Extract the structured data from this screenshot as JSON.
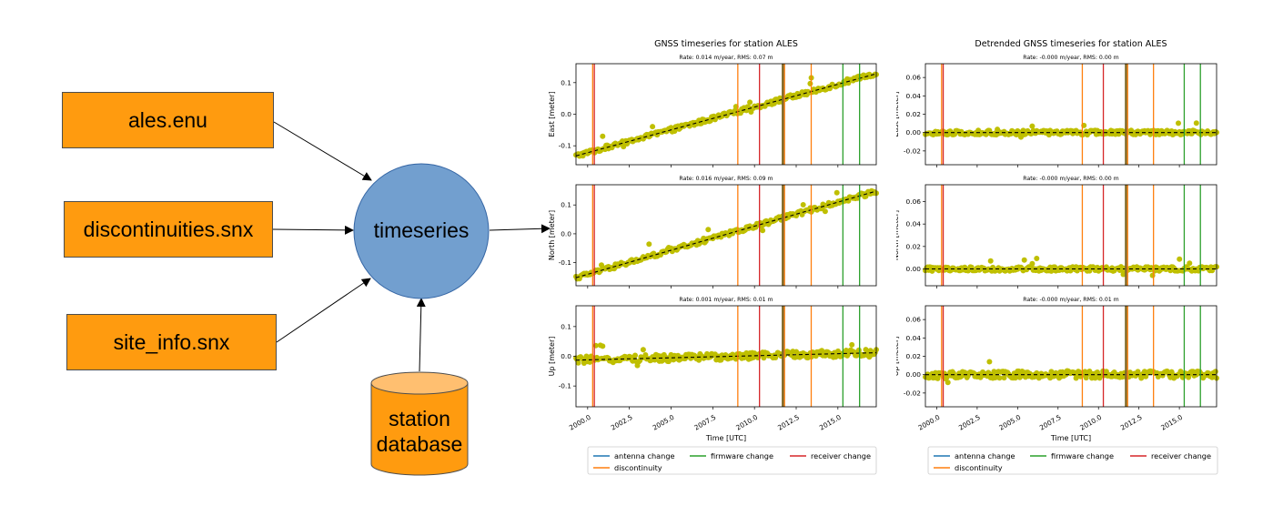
{
  "diagram": {
    "inputs": [
      {
        "label": "ales.enu"
      },
      {
        "label": "discontinuities.snx"
      },
      {
        "label": "site_info.snx"
      }
    ],
    "process": {
      "label": "timeseries"
    },
    "database": {
      "label_line1": "station",
      "label_line2": "database"
    },
    "colors": {
      "box_fill": "#ff9b0f",
      "circle_fill": "#729fcf",
      "db_fill": "#ff9b0f",
      "db_top": "#ffbf70"
    }
  },
  "chart_data": [
    {
      "type": "scatter",
      "title": "GNSS timeseries for station ALES",
      "xlabel": "Time [UTC]",
      "xticks": [
        "2000.0",
        "2002.5",
        "2005.0",
        "2007.5",
        "2010.0",
        "2012.5",
        "2015.0"
      ],
      "xlim": [
        1999.3,
        2017.3
      ],
      "marker_color": "#bfbf00",
      "panels": [
        {
          "ylabel": "East [meter]",
          "subtitle": "Rate: 0.014 m/year, RMS: 0.07 m",
          "ylim": [
            -0.16,
            0.16
          ],
          "yticks": [
            "0.1",
            "0.0",
            "-0.1"
          ],
          "trend_start": -0.132,
          "trend_end": 0.128
        },
        {
          "ylabel": "North [meter]",
          "subtitle": "Rate: 0.016 m/year, RMS: 0.09 m",
          "ylim": [
            -0.18,
            0.17
          ],
          "yticks": [
            "0.1",
            "0.0",
            "-0.1"
          ],
          "trend_start": -0.152,
          "trend_end": 0.148
        },
        {
          "ylabel": "Up [meter]",
          "subtitle": "Rate: 0.001 m/year, RMS: 0.01 m",
          "ylim": [
            -0.17,
            0.17
          ],
          "yticks": [
            "0.1",
            "0.0",
            "-0.1"
          ],
          "trend_start": -0.013,
          "trend_end": 0.012
        }
      ],
      "events": [
        {
          "x": 2000.3,
          "kind": "discontinuity"
        },
        {
          "x": 2000.4,
          "kind": "receiver change"
        },
        {
          "x": 2009.0,
          "kind": "discontinuity"
        },
        {
          "x": 2010.3,
          "kind": "receiver change"
        },
        {
          "x": 2011.7,
          "kind": "antenna change"
        },
        {
          "x": 2011.8,
          "kind": "discontinuity"
        },
        {
          "x": 2013.4,
          "kind": "discontinuity"
        },
        {
          "x": 2015.3,
          "kind": "firmware change"
        },
        {
          "x": 2016.3,
          "kind": "firmware change"
        }
      ],
      "legend": [
        {
          "label": "antenna change",
          "color": "#1f77b4"
        },
        {
          "label": "firmware change",
          "color": "#2ca02c"
        },
        {
          "label": "receiver change",
          "color": "#d62728"
        },
        {
          "label": "discontinuity",
          "color": "#ff7f0e"
        }
      ]
    },
    {
      "type": "scatter",
      "title": "Detrended GNSS timeseries for station ALES",
      "xlabel": "Time [UTC]",
      "xticks": [
        "2000.0",
        "2002.5",
        "2005.0",
        "2007.5",
        "2010.0",
        "2012.5",
        "2015.0"
      ],
      "xlim": [
        1999.3,
        2017.3
      ],
      "marker_color": "#bfbf00",
      "panels": [
        {
          "ylabel": "East [meter]",
          "subtitle": "Rate: -0.000 m/year, RMS: 0.00 m",
          "ylim": [
            -0.035,
            0.075
          ],
          "yticks": [
            "0.06",
            "0.04",
            "0.02",
            "0.00",
            "-0.02"
          ],
          "trend_start": 0,
          "trend_end": 0
        },
        {
          "ylabel": "North [meter]",
          "subtitle": "Rate: -0.000 m/year, RMS: 0.00 m",
          "ylim": [
            -0.015,
            0.075
          ],
          "yticks": [
            "0.06",
            "0.04",
            "0.02",
            "0.00"
          ],
          "trend_start": 0,
          "trend_end": 0
        },
        {
          "ylabel": "Up [meter]",
          "subtitle": "Rate: -0.000 m/year, RMS: 0.01 m",
          "ylim": [
            -0.035,
            0.075
          ],
          "yticks": [
            "0.06",
            "0.04",
            "0.02",
            "0.00",
            "-0.02"
          ],
          "trend_start": 0,
          "trend_end": 0
        }
      ],
      "events": [
        {
          "x": 2000.3,
          "kind": "discontinuity"
        },
        {
          "x": 2000.4,
          "kind": "receiver change"
        },
        {
          "x": 2009.0,
          "kind": "discontinuity"
        },
        {
          "x": 2010.3,
          "kind": "receiver change"
        },
        {
          "x": 2011.7,
          "kind": "antenna change"
        },
        {
          "x": 2011.8,
          "kind": "discontinuity"
        },
        {
          "x": 2013.4,
          "kind": "discontinuity"
        },
        {
          "x": 2015.3,
          "kind": "firmware change"
        },
        {
          "x": 2016.3,
          "kind": "firmware change"
        }
      ],
      "legend": [
        {
          "label": "antenna change",
          "color": "#1f77b4"
        },
        {
          "label": "firmware change",
          "color": "#2ca02c"
        },
        {
          "label": "receiver change",
          "color": "#d62728"
        },
        {
          "label": "discontinuity",
          "color": "#ff7f0e"
        }
      ]
    }
  ]
}
